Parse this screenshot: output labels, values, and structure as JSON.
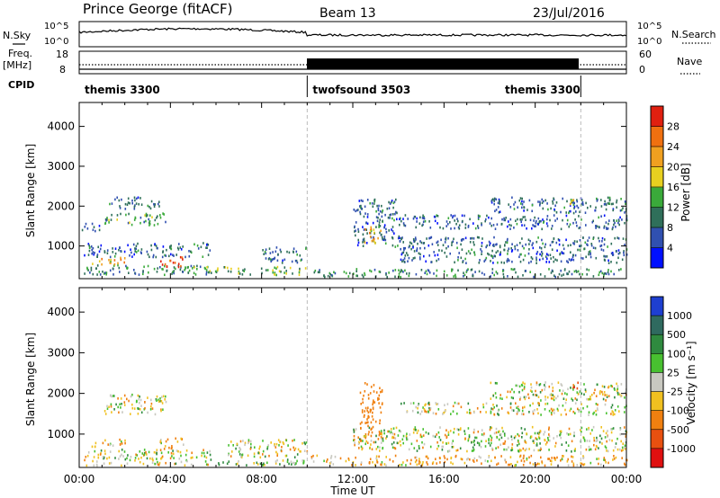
{
  "header": {
    "station": "Prince George (fitACF)",
    "beam": "Beam 13",
    "date": "23/Jul/2016"
  },
  "status_panels": {
    "nsky_label": "N.Sky",
    "nsky_ticks": [
      "10^5",
      "10^0"
    ],
    "nsearch_label": "N.Search",
    "nsearch_ticks": [
      "10^5",
      "10^0"
    ],
    "freq_label": "Freq.",
    "freq_unit": "[MHz]",
    "freq_ticks": [
      "18",
      "8"
    ],
    "nave_label": "Nave",
    "nave_ticks": [
      "60",
      "0"
    ],
    "cpid_label": "CPID",
    "cpid_segments": [
      {
        "name": "themis 3300",
        "start_hour": 0,
        "end_hour": 10
      },
      {
        "name": "twofsound 3503",
        "start_hour": 10,
        "end_hour": 22
      },
      {
        "name": "themis 3300",
        "start_hour": 22,
        "end_hour": 24
      }
    ]
  },
  "axes": {
    "ylabel": "Slant Range [km]",
    "xlabel": "Time UT",
    "x_ticks": [
      "00:00",
      "04:00",
      "08:00",
      "12:00",
      "16:00",
      "20:00",
      "00:00"
    ],
    "y_ticks": [
      "1000",
      "2000",
      "3000",
      "4000"
    ]
  },
  "power_colorbar": {
    "label": "Power [dB]",
    "ticks": [
      "4",
      "8",
      "12",
      "16",
      "20",
      "24",
      "28"
    ],
    "colors": [
      "#0010ff",
      "#3050b0",
      "#2f6f5a",
      "#3aaa3a",
      "#e8d020",
      "#f0a020",
      "#f07010",
      "#e02010"
    ]
  },
  "velocity_colorbar": {
    "label": "Velocity [m s⁻¹]",
    "ticks": [
      "1000",
      "500",
      "100",
      "25",
      "-25",
      "-100",
      "-500",
      "-1000"
    ],
    "colors": [
      "#1e3fd0",
      "#2f6a5f",
      "#2f8a3f",
      "#48c030",
      "#c8c8c0",
      "#f0c020",
      "#f08010",
      "#e85010",
      "#e01010"
    ]
  },
  "chart_data": [
    {
      "type": "heatmap",
      "title": "Power",
      "xlabel": "Time UT",
      "ylabel": "Slant Range [km]",
      "xlim": [
        0,
        24
      ],
      "ylim": [
        180,
        4600
      ],
      "colorbar_label": "Power [dB]",
      "colorbar_range": [
        0,
        32
      ],
      "regions": [
        {
          "t0": 0.2,
          "t1": 5.8,
          "r0": 300,
          "r1": 560,
          "value": 10
        },
        {
          "t0": 0.5,
          "t1": 2.0,
          "r0": 560,
          "r1": 750,
          "value": 20
        },
        {
          "t0": 3.5,
          "t1": 4.6,
          "r0": 500,
          "r1": 750,
          "value": 28
        },
        {
          "t0": 0.2,
          "t1": 5.8,
          "r0": 750,
          "r1": 1100,
          "value": 8
        },
        {
          "t0": 1.0,
          "t1": 3.8,
          "r0": 1550,
          "r1": 1850,
          "value": 12
        },
        {
          "t0": 1.3,
          "t1": 3.5,
          "r0": 1950,
          "r1": 2250,
          "value": 8
        },
        {
          "t0": 0.1,
          "t1": 1.0,
          "r0": 1400,
          "r1": 1600,
          "value": 6
        },
        {
          "t0": 5.0,
          "t1": 10.0,
          "r0": 300,
          "r1": 500,
          "value": 14
        },
        {
          "t0": 8.0,
          "t1": 10.0,
          "r0": 600,
          "r1": 1000,
          "value": 8
        },
        {
          "t0": 10.0,
          "t1": 24.0,
          "r0": 250,
          "r1": 450,
          "value": 10
        },
        {
          "t0": 12.0,
          "t1": 14.0,
          "r0": 1000,
          "r1": 2200,
          "value": 8
        },
        {
          "t0": 12.5,
          "t1": 13.2,
          "r0": 1100,
          "r1": 1500,
          "value": 22
        },
        {
          "t0": 14.0,
          "t1": 24.0,
          "r0": 600,
          "r1": 1250,
          "value": 8
        },
        {
          "t0": 14.0,
          "t1": 24.0,
          "r0": 1450,
          "r1": 1800,
          "value": 8
        },
        {
          "t0": 18.0,
          "t1": 24.0,
          "r0": 1850,
          "r1": 2250,
          "value": 8
        },
        {
          "t0": 21.5,
          "t1": 22.0,
          "r0": 2000,
          "r1": 2200,
          "value": 16
        }
      ]
    },
    {
      "type": "heatmap",
      "title": "Velocity",
      "xlabel": "Time UT",
      "ylabel": "Slant Range [km]",
      "xlim": [
        0,
        24
      ],
      "ylim": [
        180,
        4600
      ],
      "colorbar_label": "Velocity [m s⁻¹]",
      "colorbar_range": [
        -1000,
        1000
      ],
      "regions": [
        {
          "t0": 0.2,
          "t1": 5.8,
          "r0": 250,
          "r1": 650,
          "value": 0
        },
        {
          "t0": 0.5,
          "t1": 2.0,
          "r0": 700,
          "r1": 900,
          "value": -100
        },
        {
          "t0": 3.5,
          "t1": 4.6,
          "r0": 650,
          "r1": 950,
          "value": -100
        },
        {
          "t0": 1.0,
          "t1": 3.8,
          "r0": 1500,
          "r1": 2000,
          "value": 0
        },
        {
          "t0": 5.5,
          "t1": 10.0,
          "r0": 250,
          "r1": 400,
          "value": 50
        },
        {
          "t0": 6.5,
          "t1": 10.0,
          "r0": 450,
          "r1": 900,
          "value": 0
        },
        {
          "t0": 10.0,
          "t1": 24.0,
          "r0": 250,
          "r1": 500,
          "value": -100
        },
        {
          "t0": 12.3,
          "t1": 13.3,
          "r0": 800,
          "r1": 2300,
          "value": -300
        },
        {
          "t0": 12.0,
          "t1": 24.0,
          "r0": 600,
          "r1": 1200,
          "value": 0
        },
        {
          "t0": 14.0,
          "t1": 24.0,
          "r0": 1500,
          "r1": 1800,
          "value": 0
        },
        {
          "t0": 18.0,
          "t1": 24.0,
          "r0": 1850,
          "r1": 2300,
          "value": 0
        },
        {
          "t0": 21.6,
          "t1": 21.9,
          "r0": 2100,
          "r1": 2300,
          "value": -1000
        }
      ]
    }
  ]
}
